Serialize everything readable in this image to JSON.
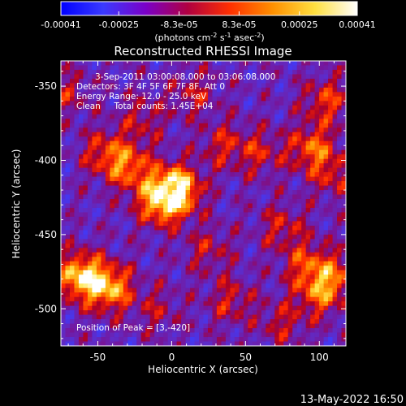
{
  "colorbar": {
    "tick_labels": [
      "-0.00041",
      "-0.00025",
      "-8.3e-05",
      "8.3e-05",
      "0.00025",
      "0.00041"
    ],
    "tick_values": [
      -0.00041,
      -0.00025,
      -8.3e-05,
      8.3e-05,
      0.00025,
      0.00041
    ],
    "range": [
      -0.00041,
      0.00041
    ],
    "unit_base": "(photons cm",
    "unit_sup1": "-2",
    "unit_mid": " s",
    "unit_sup2": "-1",
    "unit_mid2": " asec",
    "unit_sup3": "-2",
    "unit_end": ")",
    "colors": [
      "#0000ff",
      "#3a3aff",
      "#7a00c8",
      "#b00040",
      "#ff3000",
      "#ff9000",
      "#ffe040",
      "#ffffff"
    ]
  },
  "chart_data": {
    "type": "heatmap",
    "title": "Reconstructed RHESSI Image",
    "xlabel": "Heliocentric X (arcsec)",
    "ylabel": "Heliocentric Y (arcsec)",
    "xlim": [
      -75,
      118
    ],
    "ylim": [
      -525,
      -333
    ],
    "x_ticks": [
      -50,
      0,
      50,
      100
    ],
    "x_tick_labels": [
      "-50",
      "0",
      "50",
      "100"
    ],
    "y_ticks": [
      -350,
      -400,
      -450,
      -500
    ],
    "y_tick_labels": [
      "-350",
      "-400",
      "-450",
      "-500"
    ],
    "annotations": [
      "3-Sep-2011 03:00:08.000 to 03:06:08.000",
      "Detectors: 3F 4F 5F 6F 7F 8F, Att 0",
      "Energy Range: 12.0 - 25.0 keV",
      "Clean     Total counts: 1.45E+04"
    ],
    "peak_label": "Position of Peak = [3,-420]",
    "peak": [
      3,
      -420
    ],
    "sources": [
      {
        "x": 3,
        "y": -420,
        "v": 1.0
      },
      {
        "x": -8,
        "y": -428,
        "v": 0.65
      },
      {
        "x": -62,
        "y": -478,
        "v": 0.85
      },
      {
        "x": -42,
        "y": -486,
        "v": 0.75
      },
      {
        "x": -28,
        "y": -405,
        "v": 0.55
      },
      {
        "x": -45,
        "y": -395,
        "v": 0.45
      },
      {
        "x": 95,
        "y": -392,
        "v": 0.55
      },
      {
        "x": 105,
        "y": -360,
        "v": 0.45
      },
      {
        "x": 110,
        "y": -410,
        "v": 0.35
      },
      {
        "x": 92,
        "y": -470,
        "v": 0.45
      },
      {
        "x": 100,
        "y": -490,
        "v": 0.5
      },
      {
        "x": 112,
        "y": -478,
        "v": 0.4
      },
      {
        "x": 75,
        "y": -445,
        "v": 0.35
      },
      {
        "x": 60,
        "y": -395,
        "v": 0.35
      },
      {
        "x": 35,
        "y": -390,
        "v": 0.35
      },
      {
        "x": 40,
        "y": -495,
        "v": 0.35
      },
      {
        "x": 25,
        "y": -460,
        "v": 0.3
      },
      {
        "x": -20,
        "y": -372,
        "v": 0.3
      },
      {
        "x": 15,
        "y": -355,
        "v": 0.3
      },
      {
        "x": -72,
        "y": -355,
        "v": 0.3
      },
      {
        "x": 75,
        "y": -510,
        "v": 0.3
      },
      {
        "x": -10,
        "y": -500,
        "v": 0.25
      }
    ],
    "grid": false
  },
  "footer": {
    "timestamp": "13-May-2022 16:50"
  }
}
